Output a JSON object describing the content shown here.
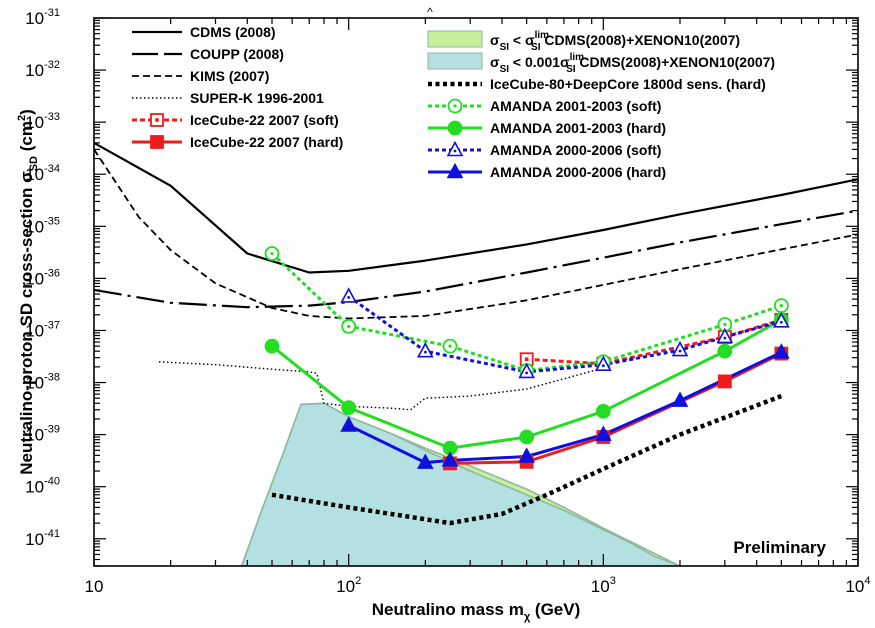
{
  "chart_data": {
    "type": "line",
    "xlabel": "Neutralino mass m",
    "xlabel_sub": "χ",
    "xlabel_unit": " (GeV)",
    "ylabel": "Neutralino-proton SD cross-section σ",
    "ylabel_sub": "SD",
    "ylabel_unit": " (cm",
    "ylabel_unit_sup": "2",
    "ylabel_close": ")",
    "xscale": "log",
    "yscale": "log",
    "xlim": [
      10,
      10000
    ],
    "ylim": [
      3e-42,
      1e-31
    ],
    "x_ticks": [
      {
        "base": "10",
        "exp": ""
      },
      {
        "base": "10",
        "exp": "2"
      },
      {
        "base": "10",
        "exp": "3"
      },
      {
        "base": "10",
        "exp": "4"
      }
    ],
    "y_ticks": [
      {
        "base": "10",
        "exp": "-41"
      },
      {
        "base": "10",
        "exp": "-40"
      },
      {
        "base": "10",
        "exp": "-39"
      },
      {
        "base": "10",
        "exp": "-38"
      },
      {
        "base": "10",
        "exp": "-37"
      },
      {
        "base": "10",
        "exp": "-36"
      },
      {
        "base": "10",
        "exp": "-35"
      },
      {
        "base": "10",
        "exp": "-34"
      },
      {
        "base": "10",
        "exp": "-33"
      },
      {
        "base": "10",
        "exp": "-32"
      },
      {
        "base": "10",
        "exp": "-31"
      }
    ],
    "annotation": "Preliminary",
    "top_mark": "^",
    "colors": {
      "green": "#22dd22",
      "red": "#ee1c1c",
      "blue": "#1010dd",
      "fill_cyan": "#b4e0e2",
      "fill_green": "#c8ef9c",
      "fill_edge": "#8fb8a0"
    },
    "legend_left": [
      {
        "label": "CDMS (2008)",
        "style": "solid"
      },
      {
        "label": "COUPP (2008)",
        "style": "longdash"
      },
      {
        "label": "KIMS (2007)",
        "style": "dash"
      },
      {
        "label": "SUPER-K 1996-2001",
        "style": "dot"
      },
      {
        "label": "IceCube-22 2007 (soft)",
        "style": "red-dash-open-square"
      },
      {
        "label": "IceCube-22 2007 (hard)",
        "style": "red-solid-square"
      }
    ],
    "legend_right": [
      {
        "pre": "σ",
        "pre_sub": "SI",
        "mid": " < σ",
        "mid_sub": "SI",
        "mid_sup": "lim",
        "post": " CDMS(2008)+XENON10(2007)",
        "style": "green-band"
      },
      {
        "pre": "σ",
        "pre_sub": "SI",
        "mid": " < 0.001σ",
        "mid_sub": "SI",
        "mid_sup": "lim",
        "post": " CDMS(2008)+XENON10(2007)",
        "style": "cyan-band"
      },
      {
        "pre": "IceCube-80+DeepCore 1800d sens. (hard)",
        "style": "thick-dot"
      },
      {
        "pre": "AMANDA 2001-2003 (soft)",
        "style": "green-dot-open-circle"
      },
      {
        "pre": "AMANDA 2001-2003 (hard)",
        "style": "green-solid-circle"
      },
      {
        "pre": "AMANDA 2000-2006 (soft)",
        "style": "blue-dot-open-triangle"
      },
      {
        "pre": "AMANDA 2000-2006 (hard)",
        "style": "blue-solid-triangle"
      }
    ],
    "series": [
      {
        "name": "CDMS (2008)",
        "x": [
          10,
          20,
          40,
          70,
          100,
          200,
          500,
          1000,
          2000,
          5000,
          10000
        ],
        "y": [
          4e-34,
          6e-35,
          3e-36,
          1.3e-36,
          1.4e-36,
          2.2e-36,
          4.5e-36,
          8.5e-36,
          1.7e-35,
          4e-35,
          8e-35
        ]
      },
      {
        "name": "COUPP (2008)",
        "x": [
          10,
          20,
          40,
          70,
          100,
          200,
          500,
          1000,
          2000,
          5000,
          10000
        ],
        "y": [
          6e-37,
          3.4e-37,
          2.8e-37,
          3e-37,
          3.5e-37,
          5.6e-37,
          1.3e-36,
          2.5e-36,
          4.9e-36,
          1.1e-35,
          2e-35
        ]
      },
      {
        "name": "KIMS (2007)",
        "x": [
          10,
          15,
          20,
          30,
          50,
          70,
          100,
          200,
          500,
          1000,
          2000,
          5000,
          10000
        ],
        "y": [
          3e-34,
          1.5e-35,
          3.5e-36,
          8e-37,
          2.7e-37,
          1.9e-37,
          1.7e-37,
          1.9e-37,
          3.8e-37,
          7.5e-37,
          1.5e-36,
          3.6e-36,
          7e-36
        ]
      },
      {
        "name": "SUPER-K 1996-2001",
        "x": [
          18,
          30,
          50,
          70,
          75,
          80,
          100,
          150,
          175,
          200,
          300,
          500,
          1000
        ],
        "y": [
          2.5e-38,
          2.2e-38,
          1.8e-38,
          1.6e-38,
          1.5e-38,
          4e-39,
          3.5e-39,
          3.2e-39,
          3e-39,
          5e-39,
          5.5e-39,
          7.5e-39,
          1.9e-38
        ]
      },
      {
        "name": "IceCube-22 2007 (soft)",
        "x": [
          500,
          1000,
          3000,
          5000
        ],
        "y": [
          2.8e-38,
          2.3e-38,
          7.5e-38,
          1.6e-37
        ]
      },
      {
        "name": "IceCube-22 2007 (hard)",
        "x": [
          250,
          500,
          1000,
          3000,
          5000
        ],
        "y": [
          2.8e-40,
          3e-40,
          9e-40,
          1.05e-38,
          3.6e-38
        ]
      },
      {
        "name": "IceCube-80+DeepCore 1800d sens. (hard)",
        "x": [
          50,
          100,
          250,
          400,
          600,
          1000,
          2000,
          5000
        ],
        "y": [
          7e-41,
          4e-41,
          2e-41,
          3e-41,
          7e-41,
          2.2e-40,
          1e-39,
          5.5e-39
        ]
      },
      {
        "name": "AMANDA 2001-2003 (soft)",
        "x": [
          50,
          100,
          250,
          500,
          1000,
          3000,
          5000
        ],
        "y": [
          3e-36,
          1.2e-37,
          5e-38,
          1.7e-38,
          2.5e-38,
          1.3e-37,
          3e-37
        ]
      },
      {
        "name": "AMANDA 2001-2003 (hard)",
        "x": [
          50,
          100,
          250,
          500,
          1000,
          3000,
          5000
        ],
        "y": [
          5e-38,
          3.3e-39,
          5.5e-40,
          9e-40,
          2.8e-39,
          4e-38,
          1.6e-37
        ]
      },
      {
        "name": "AMANDA 2000-2006 (soft)",
        "x": [
          100,
          200,
          500,
          1000,
          2000,
          3000,
          5000
        ],
        "y": [
          4.5e-37,
          4e-38,
          1.6e-38,
          2.2e-38,
          4.2e-38,
          7.5e-38,
          1.5e-37
        ]
      },
      {
        "name": "AMANDA 2000-2006 (hard)",
        "x": [
          100,
          200,
          250,
          500,
          1000,
          2000,
          5000
        ],
        "y": [
          1.5e-39,
          2.9e-40,
          3.2e-40,
          3.8e-40,
          1e-39,
          4.5e-39,
          3.8e-38
        ]
      }
    ],
    "bands": [
      {
        "name": "σSI < σSIlim CDMS(2008)+XENON10(2007)",
        "x": [
          38,
          45,
          55,
          65,
          80,
          100,
          150,
          200,
          300,
          500,
          700,
          1000,
          1500,
          2000
        ],
        "y": [
          3e-42,
          3e-41,
          4e-40,
          3.8e-39,
          4e-39,
          2.2e-39,
          1e-39,
          5.5e-40,
          2.5e-40,
          9e-41,
          4e-41,
          1.6e-41,
          6e-42,
          3e-42
        ]
      },
      {
        "name": "σSI < 0.001σSIlim CDMS(2008)+XENON10(2007)",
        "x": [
          38,
          45,
          55,
          65,
          80,
          100,
          150,
          200,
          300,
          500,
          700,
          1000,
          1300,
          1600,
          2000
        ],
        "y": [
          3e-42,
          3e-41,
          4e-40,
          3.8e-39,
          4e-39,
          2.2e-39,
          1e-39,
          5e-40,
          2e-40,
          7e-41,
          3.5e-41,
          1.5e-41,
          8e-42,
          4.5e-42,
          3e-42
        ]
      }
    ]
  }
}
